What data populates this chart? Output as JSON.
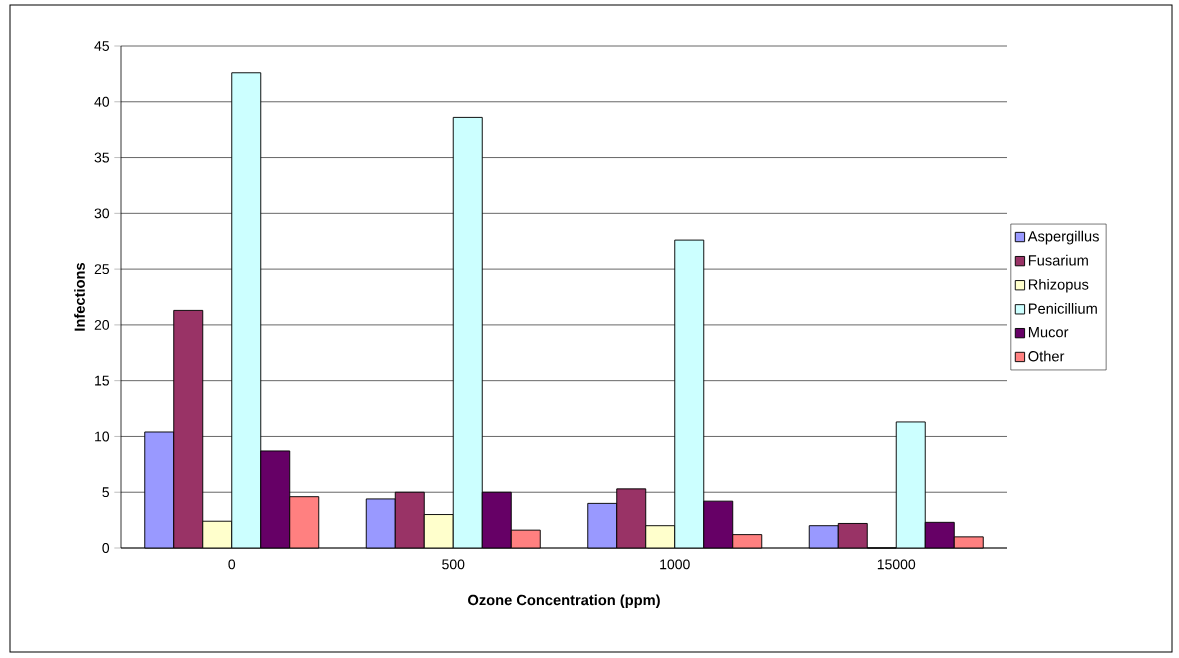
{
  "chart_data": {
    "type": "bar",
    "xlabel": "Ozone Concentration (ppm)",
    "ylabel": "Infections",
    "categories": [
      "0",
      "500",
      "1000",
      "15000"
    ],
    "series": [
      {
        "name": "Aspergillus",
        "color": "#9999ff",
        "values": [
          10.4,
          4.4,
          4.0,
          2.0
        ]
      },
      {
        "name": "Fusarium",
        "color": "#993366",
        "values": [
          21.3,
          5.0,
          5.3,
          2.2
        ]
      },
      {
        "name": "Rhizopus",
        "color": "#ffffcc",
        "values": [
          2.4,
          3.0,
          2.0,
          0
        ]
      },
      {
        "name": "Penicillium",
        "color": "#ccffff",
        "values": [
          42.6,
          38.6,
          27.6,
          11.3
        ]
      },
      {
        "name": "Mucor",
        "color": "#660066",
        "values": [
          8.7,
          5.0,
          4.2,
          2.3
        ]
      },
      {
        "name": "Other",
        "color": "#ff8080",
        "values": [
          4.6,
          1.6,
          1.2,
          1.0
        ]
      }
    ],
    "ylim": [
      0,
      45
    ],
    "yticks": [
      0,
      5,
      10,
      15,
      20,
      25,
      30,
      35,
      40,
      45
    ],
    "grid": "y",
    "legend": "right"
  }
}
